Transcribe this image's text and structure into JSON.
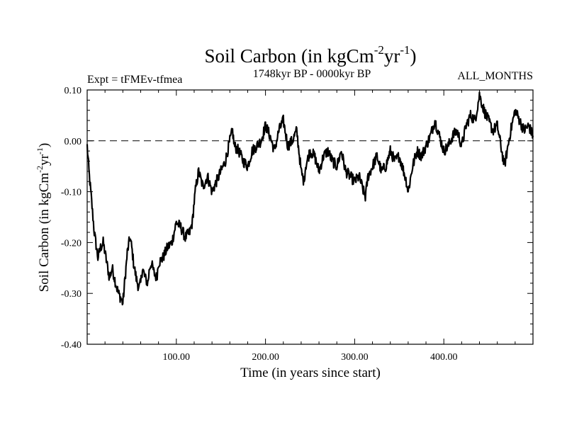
{
  "chart_data": {
    "type": "line",
    "title": {
      "main": "Soil Carbon (in kgCm",
      "sup1": "-2",
      "mid": "yr",
      "sup2": "-1",
      "end": ")"
    },
    "subtitle_left": "Expt = tFMEv-tfmea",
    "subtitle_center": "1748kyr BP - 0000kyr BP",
    "subtitle_right": "ALL_MONTHS",
    "xlabel": "Time (in years since start)",
    "ylabel": {
      "main": "Soil Carbon (in kgCm",
      "sup1": "-2",
      "mid": "yr",
      "sup2": "-1",
      "end": ")"
    },
    "xlim": [
      0,
      500
    ],
    "ylim": [
      -0.4,
      0.1
    ],
    "xticks": [
      100,
      200,
      300,
      400
    ],
    "xtick_labels": [
      "100.00",
      "200.00",
      "300.00",
      "400.00"
    ],
    "yticks": [
      0.1,
      0.0,
      -0.1,
      -0.2,
      -0.3,
      -0.4
    ],
    "ytick_labels": [
      "0.10",
      "0.00",
      "-0.10",
      "-0.20",
      "-0.30",
      "-0.40"
    ],
    "reference_line": {
      "y": 0.0,
      "style": "dashed"
    },
    "series": [
      {
        "name": "Soil Carbon",
        "x": [
          0,
          2,
          5,
          8,
          12,
          15,
          18,
          22,
          25,
          28,
          32,
          35,
          38,
          40,
          42,
          45,
          48,
          50,
          52,
          55,
          58,
          60,
          62,
          65,
          68,
          70,
          72,
          75,
          78,
          80,
          85,
          90,
          95,
          100,
          105,
          110,
          115,
          118,
          120,
          122,
          125,
          128,
          130,
          135,
          140,
          145,
          150,
          155,
          160,
          163,
          165,
          170,
          175,
          180,
          185,
          190,
          195,
          200,
          205,
          210,
          215,
          220,
          225,
          230,
          235,
          240,
          243,
          245,
          250,
          255,
          260,
          265,
          270,
          275,
          280,
          285,
          290,
          295,
          300,
          305,
          310,
          312,
          315,
          320,
          325,
          330,
          335,
          340,
          345,
          350,
          355,
          358,
          360,
          365,
          370,
          375,
          380,
          385,
          390,
          395,
          400,
          405,
          410,
          415,
          420,
          425,
          430,
          435,
          438,
          440,
          445,
          450,
          455,
          460,
          465,
          468,
          470,
          475,
          480,
          485,
          490,
          495,
          500
        ],
        "values": [
          -0.01,
          -0.06,
          -0.12,
          -0.18,
          -0.23,
          -0.21,
          -0.2,
          -0.24,
          -0.27,
          -0.25,
          -0.28,
          -0.3,
          -0.31,
          -0.32,
          -0.28,
          -0.22,
          -0.19,
          -0.21,
          -0.24,
          -0.27,
          -0.29,
          -0.28,
          -0.25,
          -0.27,
          -0.28,
          -0.25,
          -0.24,
          -0.26,
          -0.27,
          -0.24,
          -0.23,
          -0.21,
          -0.2,
          -0.16,
          -0.17,
          -0.19,
          -0.18,
          -0.16,
          -0.12,
          -0.09,
          -0.06,
          -0.08,
          -0.09,
          -0.07,
          -0.1,
          -0.08,
          -0.06,
          -0.04,
          0.0,
          0.02,
          -0.01,
          -0.02,
          -0.04,
          -0.05,
          -0.02,
          -0.01,
          0.0,
          0.03,
          0.01,
          -0.02,
          0.02,
          0.04,
          -0.01,
          0.0,
          0.02,
          -0.06,
          -0.08,
          -0.05,
          -0.02,
          -0.03,
          -0.06,
          -0.03,
          -0.02,
          -0.04,
          -0.05,
          -0.02,
          -0.06,
          -0.07,
          -0.08,
          -0.07,
          -0.1,
          -0.11,
          -0.07,
          -0.05,
          -0.03,
          -0.06,
          -0.05,
          -0.02,
          -0.04,
          -0.03,
          -0.06,
          -0.08,
          -0.1,
          -0.05,
          -0.02,
          -0.03,
          -0.01,
          0.01,
          0.04,
          0.01,
          -0.02,
          -0.01,
          0.01,
          0.02,
          -0.01,
          0.03,
          0.05,
          0.04,
          0.07,
          0.09,
          0.06,
          0.04,
          0.02,
          0.03,
          -0.02,
          -0.05,
          -0.03,
          0.02,
          0.06,
          0.04,
          0.02,
          0.03,
          0.01
        ]
      }
    ]
  }
}
